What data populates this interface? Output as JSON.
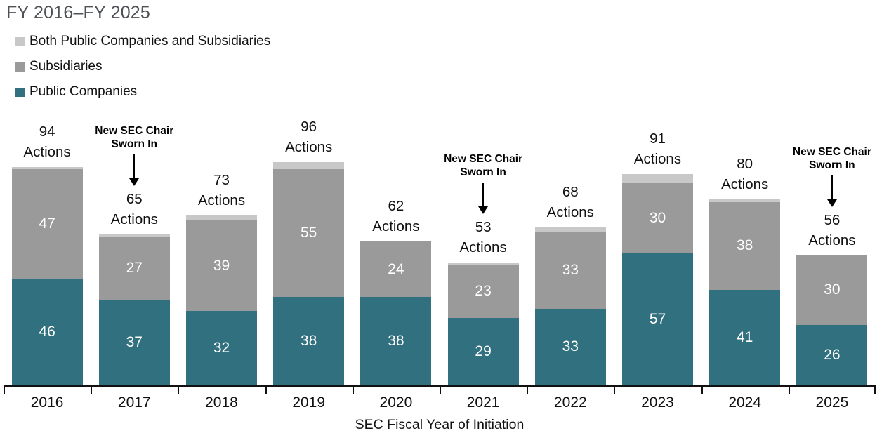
{
  "chart_data": {
    "type": "bar",
    "stacked": true,
    "title": "FY 2016–FY 2025",
    "xlabel": "SEC Fiscal Year of Initiation",
    "ylabel": "",
    "ylim": [
      0,
      96
    ],
    "grid": false,
    "legend_position": "top-left",
    "categories": [
      "2016",
      "2017",
      "2018",
      "2019",
      "2020",
      "2021",
      "2022",
      "2023",
      "2024",
      "2025"
    ],
    "series": [
      {
        "name": "Public Companies",
        "color": "#31707e",
        "values": [
          46,
          37,
          32,
          38,
          38,
          29,
          33,
          57,
          41,
          26
        ]
      },
      {
        "name": "Subsidiaries",
        "color": "#9a9a9a",
        "values": [
          47,
          27,
          39,
          55,
          24,
          23,
          33,
          30,
          38,
          30
        ]
      },
      {
        "name": "Both Public Companies and Subsidiaries",
        "color": "#c8c8c8",
        "values": [
          1,
          1,
          2,
          3,
          0,
          1,
          2,
          4,
          1,
          0
        ]
      }
    ],
    "totals": [
      94,
      65,
      73,
      96,
      62,
      53,
      68,
      91,
      80,
      56
    ],
    "total_label_suffix": "Actions",
    "legend": [
      {
        "label": "Both Public Companies and Subsidiaries",
        "color": "#c8c8c8"
      },
      {
        "label": "Subsidiaries",
        "color": "#9a9a9a"
      },
      {
        "label": "Public Companies",
        "color": "#31707e"
      }
    ],
    "annotations": [
      {
        "category": "2017",
        "lines": [
          "New SEC Chair",
          "Sworn In"
        ]
      },
      {
        "category": "2021",
        "lines": [
          "New SEC Chair",
          "Sworn In"
        ]
      },
      {
        "category": "2025",
        "lines": [
          "New SEC Chair",
          "Sworn In"
        ]
      }
    ],
    "colors": {
      "title_text": "#4e5256",
      "axis_text": "#111111",
      "bar_value_text": "#ffffff",
      "annotation_text": "#000000"
    }
  }
}
